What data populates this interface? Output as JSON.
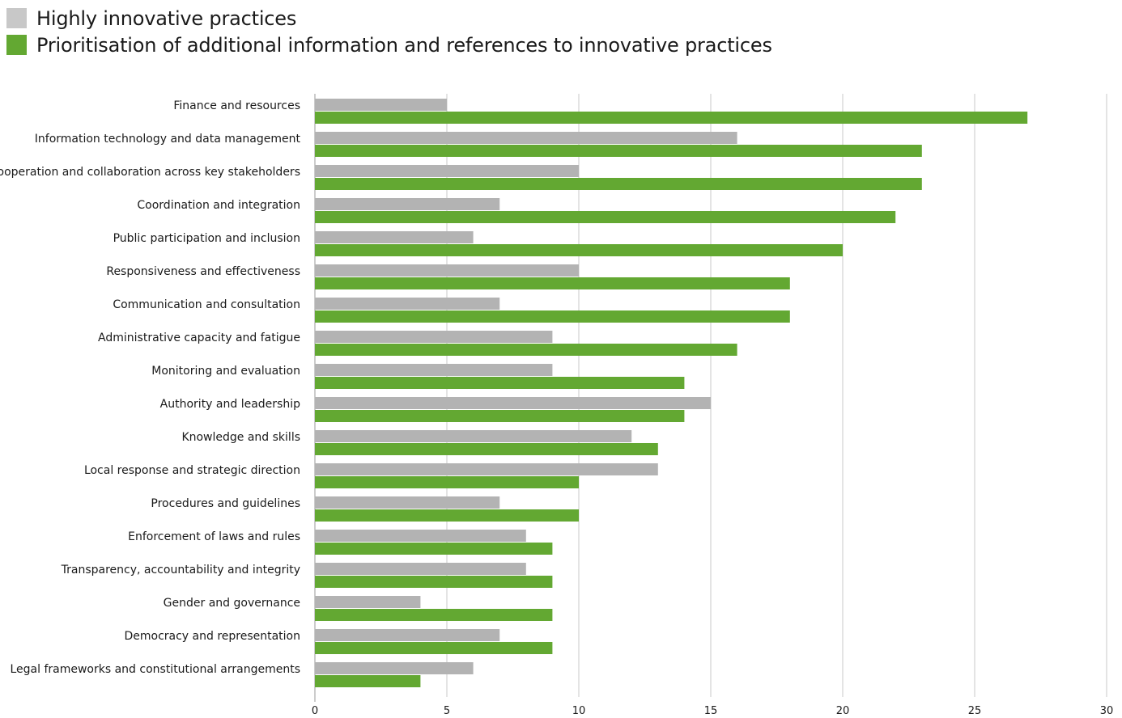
{
  "legend": [
    {
      "label": "Highly innovative practices",
      "color": "#c8c8c8"
    },
    {
      "label": "Prioritisation of additional information and references to innovative practices",
      "color": "#63a832"
    }
  ],
  "chart_data": {
    "type": "bar",
    "orientation": "horizontal",
    "categories": [
      "Finance and resources",
      "Information technology and data management",
      "Cooperation and collaboration across key stakeholders",
      "Coordination and integration",
      "Public participation and inclusion",
      "Responsiveness and effectiveness",
      "Communication and consultation",
      "Administrative capacity and fatigue",
      "Monitoring and evaluation",
      "Authority and leadership",
      "Knowledge and skills",
      "Local response and strategic direction",
      "Procedures and guidelines",
      "Enforcement of laws and rules",
      "Transparency, accountability and integrity",
      "Gender and governance",
      "Democracy and representation",
      "Legal frameworks and constitutional arrangements"
    ],
    "series": [
      {
        "name": "Highly innovative practices",
        "color": "#b3b3b3",
        "values": [
          5,
          16,
          10,
          7,
          6,
          10,
          7,
          9,
          9,
          15,
          12,
          13,
          7,
          8,
          8,
          4,
          7,
          6
        ]
      },
      {
        "name": "Prioritisation of additional information and references to innovative practices",
        "color": "#63a832",
        "values": [
          27,
          23,
          23,
          22,
          20,
          18,
          18,
          16,
          14,
          14,
          13,
          10,
          10,
          9,
          9,
          9,
          9,
          4
        ]
      }
    ],
    "xlim": [
      0,
      30
    ],
    "xticks": [
      0,
      5,
      10,
      15,
      20,
      25,
      30
    ],
    "grid": true,
    "legend_position": "top-left"
  }
}
